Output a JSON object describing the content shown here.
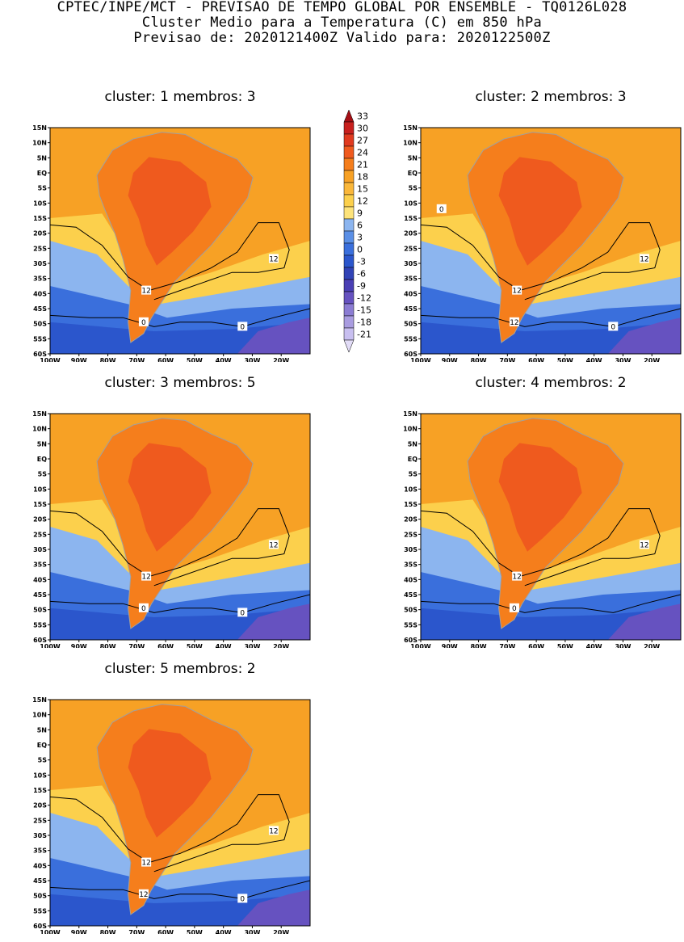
{
  "header": {
    "line1": "CPTEC/INPE/MCT - PREVISAO DE TEMPO GLOBAL POR ENSEMBLE - TQ0126L028",
    "line2": "Cluster Medio para a Temperatura (C) em 850 hPa",
    "line3": "Previsao de: 2020121400Z   Valido para: 2020122500Z"
  },
  "axes": {
    "lat_labels": [
      "15N",
      "10N",
      "5N",
      "EQ",
      "5S",
      "10S",
      "15S",
      "20S",
      "25S",
      "30S",
      "35S",
      "40S",
      "45S",
      "50S",
      "55S",
      "60S"
    ],
    "lon_labels": [
      "100W",
      "90W",
      "80W",
      "70W",
      "60W",
      "50W",
      "40W",
      "30W",
      "20W"
    ],
    "lat_range": [
      -60,
      15
    ],
    "lon_range": [
      -100,
      -10
    ]
  },
  "colorbar": {
    "labels": [
      "33",
      "30",
      "27",
      "24",
      "21",
      "18",
      "15",
      "12",
      "9",
      "6",
      "3",
      "0",
      "-3",
      "-6",
      "-9",
      "-12",
      "-15",
      "-18",
      "-21"
    ],
    "colors": [
      "#a50f15",
      "#c8201e",
      "#e03a1f",
      "#ef5a1e",
      "#f57e1c",
      "#f7a125",
      "#fab73a",
      "#fcd04c",
      "#fde37a",
      "#8cb5ef",
      "#5a8fe6",
      "#3a6fdc",
      "#2b56cc",
      "#3143b6",
      "#4a3fb4",
      "#6652c0",
      "#8b7cd3",
      "#a99ce0",
      "#c8bff0",
      "#e2dcf7"
    ]
  },
  "panels": [
    {
      "title": "cluster: 1   membros: 3",
      "contour_labels": [
        "12",
        "12",
        "0",
        "0"
      ]
    },
    {
      "title": "cluster: 2   membros: 3",
      "contour_labels": [
        "12",
        "12",
        "12",
        "0",
        "0"
      ]
    },
    {
      "title": "cluster: 3   membros: 5",
      "contour_labels": [
        "12",
        "12",
        "0",
        "0"
      ]
    },
    {
      "title": "cluster: 4   membros: 2",
      "contour_labels": [
        "12",
        "12",
        "0"
      ]
    },
    {
      "title": "cluster: 5   membros: 2",
      "contour_labels": [
        "12",
        "12",
        "12",
        "0"
      ]
    }
  ]
}
